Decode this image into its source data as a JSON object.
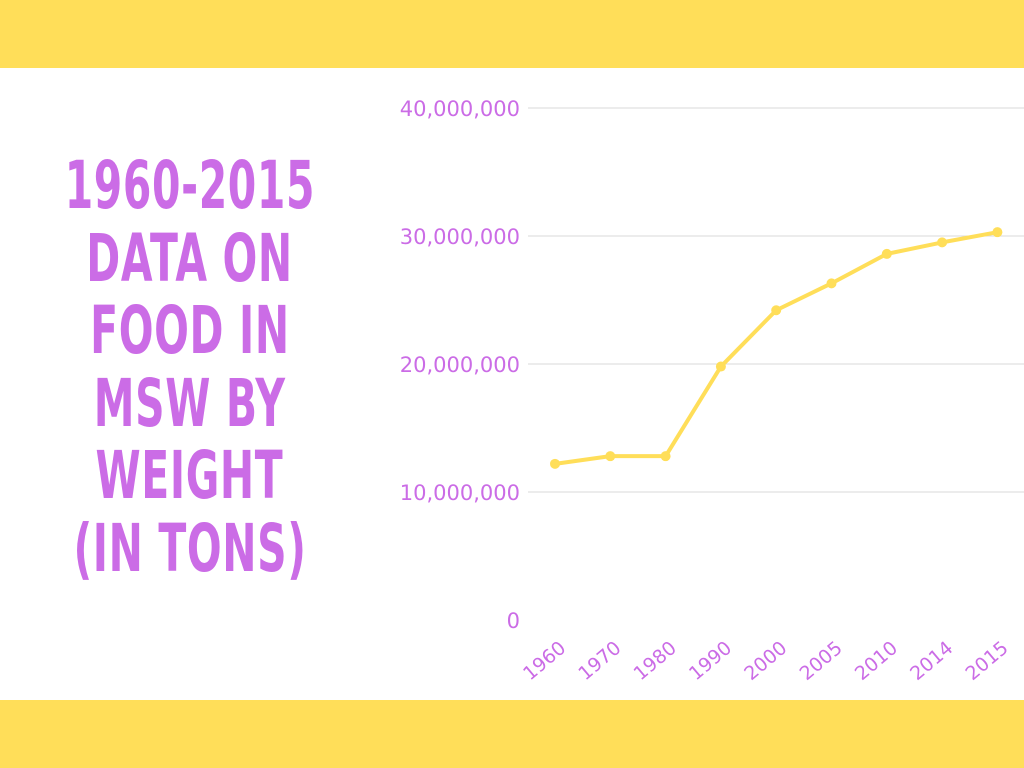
{
  "title_lines": [
    "1960-2015",
    "DATA ON",
    "FOOD IN",
    "MSW BY",
    "WEIGHT",
    "(IN TONS)"
  ],
  "colors": {
    "band": "#ffde59",
    "title": "#cb6ce6",
    "axis_text": "#cb6ce6",
    "line": "#ffde59",
    "grid": "#d9d9d9"
  },
  "chart_data": {
    "type": "line",
    "title": "1960-2015 DATA ON FOOD IN MSW BY WEIGHT (IN TONS)",
    "xlabel": "",
    "ylabel": "",
    "categories": [
      "1960",
      "1970",
      "1980",
      "1990",
      "2000",
      "2005",
      "2010",
      "2014",
      "2015"
    ],
    "series": [
      {
        "values": [
          12200000,
          12800000,
          12800000,
          19800000,
          24200000,
          26300000,
          28600000,
          29500000,
          30300000
        ]
      }
    ],
    "ylim": [
      0,
      40000000
    ],
    "yticks": [
      0,
      10000000,
      20000000,
      30000000,
      40000000
    ],
    "ytick_labels": [
      "0",
      "10,000,000",
      "20,000,000",
      "30,000,000",
      "40,000,000"
    ],
    "grid": true,
    "legend": "none"
  }
}
